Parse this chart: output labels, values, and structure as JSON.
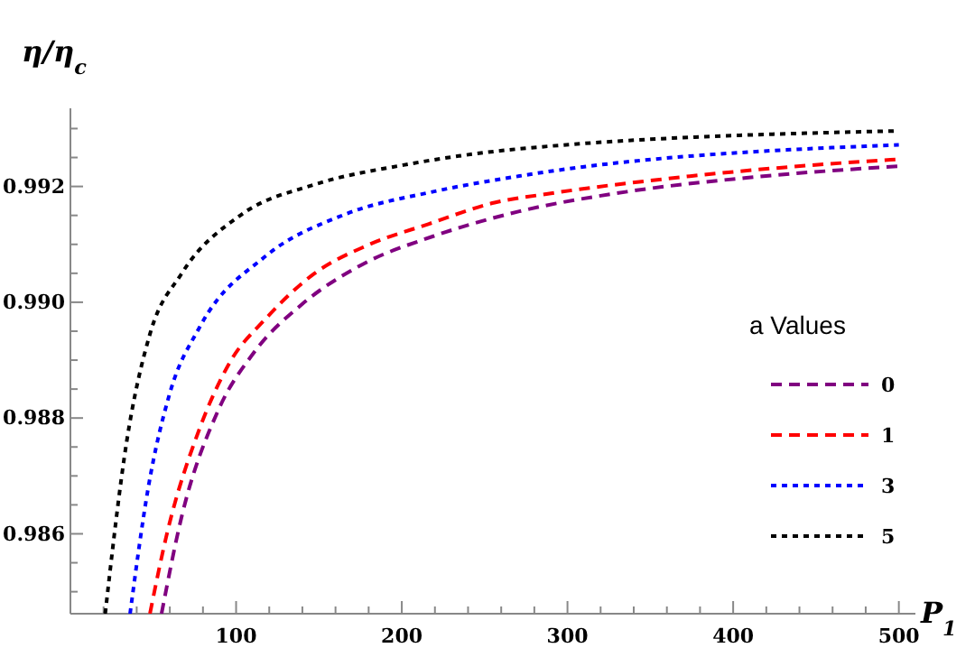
{
  "chart_data": {
    "type": "line",
    "xlabel": "P$_{1}$",
    "ylabel": "η/η$_{c}$",
    "legend_title": "a Values",
    "legend": "right",
    "grid": false,
    "marker": "none",
    "xlim": [
      0,
      510
    ],
    "ylim": [
      0.98462,
      0.99335
    ],
    "xticks": [
      {
        "value": 20,
        "label": null
      },
      {
        "value": 40,
        "label": null
      },
      {
        "value": 60,
        "label": null
      },
      {
        "value": 80,
        "label": null
      },
      100,
      {
        "value": 120,
        "label": null
      },
      {
        "value": 140,
        "label": null
      },
      {
        "value": 160,
        "label": null
      },
      {
        "value": 180,
        "label": null
      },
      200,
      {
        "value": 220,
        "label": null
      },
      {
        "value": 240,
        "label": null
      },
      {
        "value": 260,
        "label": null
      },
      {
        "value": 280,
        "label": null
      },
      300,
      {
        "value": 320,
        "label": null
      },
      {
        "value": 340,
        "label": null
      },
      {
        "value": 360,
        "label": null
      },
      {
        "value": 380,
        "label": null
      },
      400,
      {
        "value": 420,
        "label": null
      },
      {
        "value": 440,
        "label": null
      },
      {
        "value": 460,
        "label": null
      },
      {
        "value": 480,
        "label": null
      },
      500
    ],
    "yticks": [
      {
        "value": 0.985,
        "label": null
      },
      {
        "value": 0.9855,
        "label": null
      },
      {
        "value": 0.986,
        "label": "0.986"
      },
      {
        "value": 0.9865,
        "label": null
      },
      {
        "value": 0.987,
        "label": null
      },
      {
        "value": 0.9875,
        "label": null
      },
      {
        "value": 0.988,
        "label": "0.988"
      },
      {
        "value": 0.9885,
        "label": null
      },
      {
        "value": 0.989,
        "label": null
      },
      {
        "value": 0.9895,
        "label": null
      },
      {
        "value": 0.99,
        "label": "0.990"
      },
      {
        "value": 0.9905,
        "label": null
      },
      {
        "value": 0.991,
        "label": null
      },
      {
        "value": 0.9915,
        "label": null
      },
      {
        "value": 0.992,
        "label": "0.992"
      },
      {
        "value": 0.9925,
        "label": null
      },
      {
        "value": 0.993,
        "label": null
      }
    ],
    "series": [
      {
        "name": "0",
        "color": "#800080",
        "line_style": "dashed",
        "x": [
          55,
          67,
          89,
          111,
          140,
          176,
          219,
          271,
          336,
          408,
          500
        ],
        "values": [
          0.98462,
          0.98628,
          0.98812,
          0.98914,
          0.98997,
          0.99065,
          0.99114,
          0.99157,
          0.99191,
          0.99215,
          0.99235
        ]
      },
      {
        "name": "1",
        "color": "#ff0000",
        "line_style": "dashed",
        "x": [
          48,
          58,
          78,
          96,
          118,
          147,
          179,
          216,
          256,
          290,
          365,
          478,
          500
        ],
        "values": [
          0.98462,
          0.98597,
          0.98782,
          0.98895,
          0.98972,
          0.99049,
          0.99098,
          0.99135,
          0.99172,
          0.99188,
          0.99215,
          0.99243,
          0.99247
        ]
      },
      {
        "name": "3",
        "color": "#0000ff",
        "line_style": "dotted",
        "x": [
          36,
          47,
          60,
          78,
          118,
          165,
          219,
          271,
          500
        ],
        "values": [
          0.98462,
          0.9868,
          0.98843,
          0.98957,
          0.9908,
          0.99151,
          0.99191,
          0.99218,
          0.99272
        ]
      },
      {
        "name": "5",
        "color": "#000000",
        "line_style": "dotted",
        "x": [
          21,
          34,
          48,
          67,
          103,
          147,
          201,
          271,
          500
        ],
        "values": [
          0.98462,
          0.9876,
          0.98945,
          0.99049,
          0.99151,
          0.99203,
          0.99237,
          0.99265,
          0.99296
        ]
      }
    ]
  }
}
